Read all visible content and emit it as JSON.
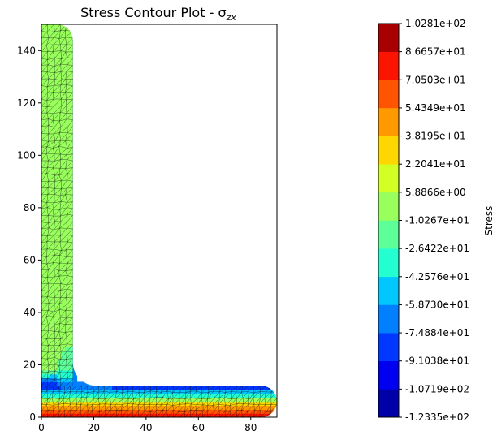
{
  "chart_data": [
    {
      "type": "contour",
      "title": "Stress Contour Plot - σ",
      "title_subscript": "zx",
      "xlabel": "",
      "ylabel": "",
      "xlim": [
        0,
        90
      ],
      "ylim": [
        0,
        150
      ],
      "x_ticks": [
        "0",
        "20",
        "40",
        "60",
        "80"
      ],
      "y_ticks": [
        "0",
        "20",
        "40",
        "60",
        "80",
        "100",
        "120",
        "140"
      ],
      "grid": false,
      "geometry": {
        "shape": "L-section (angle) cross-section",
        "vertical_leg": {
          "x": [
            0,
            12
          ],
          "y": [
            0,
            150
          ]
        },
        "horizontal_leg": {
          "x": [
            0,
            90
          ],
          "y": [
            0,
            12
          ]
        },
        "fillet_radius": 9,
        "end_rounding_radius": 6
      },
      "field_summary": [
        {
          "region": "vertical leg",
          "approx_value": -5
        },
        {
          "region": "fillet zone",
          "approx_value": -35
        },
        {
          "region": "horizontal leg top edge",
          "approx_value": -100
        },
        {
          "region": "horizontal leg mid-thickness",
          "approx_value": 20
        },
        {
          "region": "horizontal leg bottom edge",
          "approx_value": 95
        }
      ]
    },
    {
      "type": "colorbar",
      "label": "Stress",
      "levels": [
        -123.35,
        -107.19,
        -91.038,
        -74.884,
        -58.73,
        -42.576,
        -26.422,
        -10.267,
        5.8866,
        22.041,
        38.195,
        54.349,
        70.503,
        86.657,
        102.81
      ],
      "tick_labels": [
        "-1.2335e+02",
        "-1.0719e+02",
        "-9.1038e+01",
        "-7.4884e+01",
        "-5.8730e+01",
        "-4.2576e+01",
        "-2.6422e+01",
        "-1.0267e+01",
        "5.8866e+00",
        "2.2041e+01",
        "3.8195e+01",
        "5.4349e+01",
        "7.0503e+01",
        "8.6657e+01",
        "1.0281e+02"
      ],
      "colors": [
        "#0000a8",
        "#0000f0",
        "#0038ff",
        "#0080ff",
        "#00c8ff",
        "#24ffd2",
        "#5dff98",
        "#98ff5d",
        "#d2ff24",
        "#ffd700",
        "#ff9900",
        "#ff5500",
        "#fb1400",
        "#a80000"
      ]
    }
  ]
}
